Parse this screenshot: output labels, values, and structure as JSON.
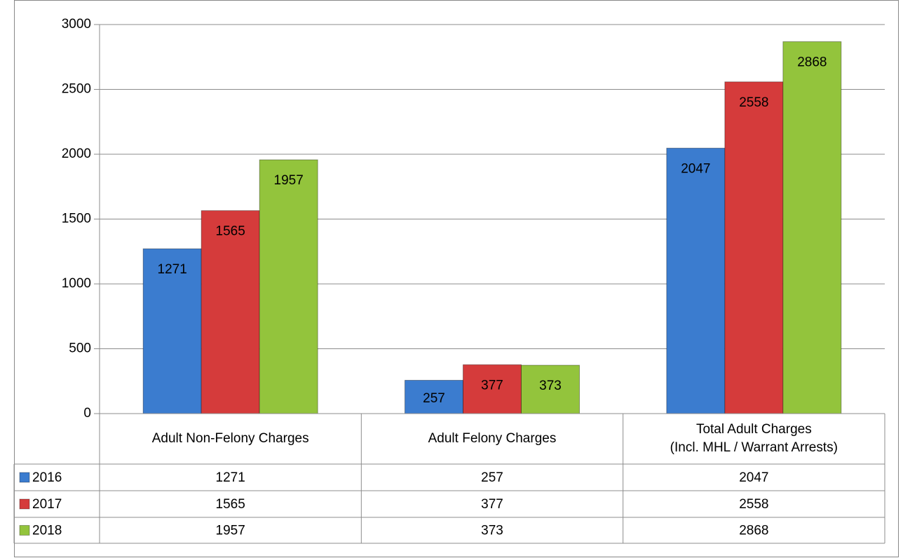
{
  "chart_data": {
    "type": "bar",
    "categories": [
      "Adult Non-Felony Charges",
      "Adult Felony Charges",
      "Total Adult Charges\n(Incl. MHL / Warrant Arrests)"
    ],
    "series": [
      {
        "name": "2016",
        "color": "#3b7ccf",
        "values": [
          1271,
          257,
          2047
        ]
      },
      {
        "name": "2017",
        "color": "#d53b3b",
        "values": [
          1565,
          377,
          2558
        ]
      },
      {
        "name": "2018",
        "color": "#93c43c",
        "values": [
          1957,
          373,
          2868
        ]
      }
    ],
    "ylim": [
      0,
      3000
    ],
    "yticks": [
      0,
      500,
      1000,
      1500,
      2000,
      2500,
      3000
    ],
    "grid": true
  }
}
